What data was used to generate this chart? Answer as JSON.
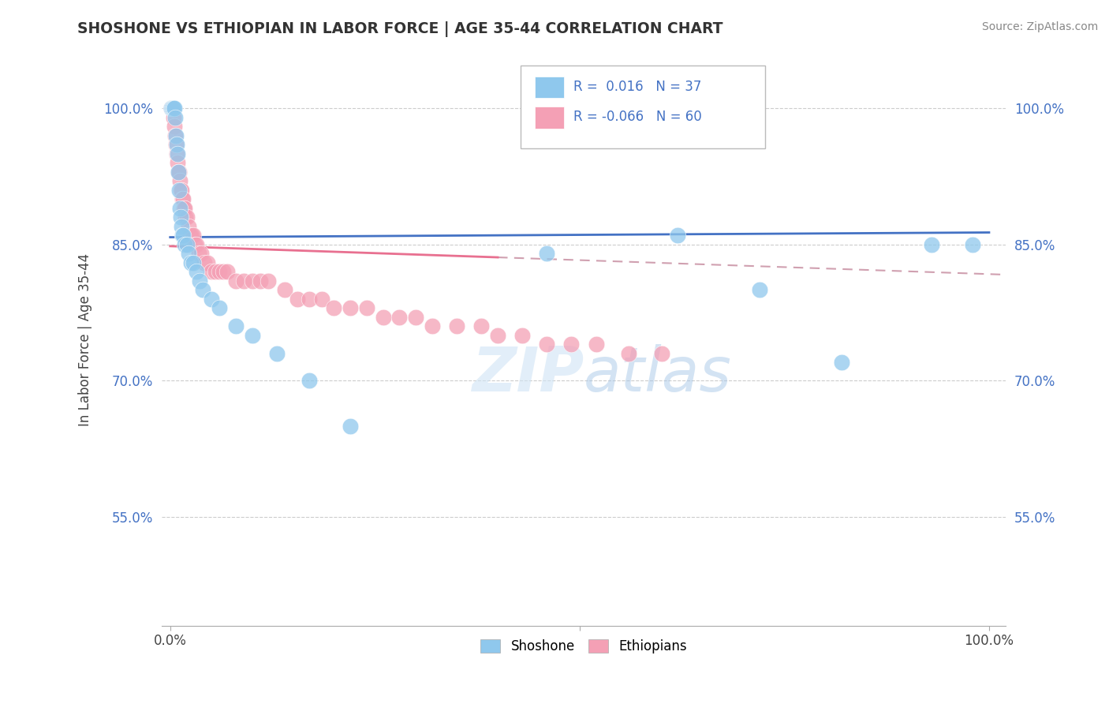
{
  "title": "SHOSHONE VS ETHIOPIAN IN LABOR FORCE | AGE 35-44 CORRELATION CHART",
  "source": "Source: ZipAtlas.com",
  "ylabel": "In Labor Force | Age 35-44",
  "y_ticks": [
    0.55,
    0.7,
    0.85,
    1.0
  ],
  "y_tick_labels": [
    "55.0%",
    "70.0%",
    "85.0%",
    "100.0%"
  ],
  "ylim": [
    0.43,
    1.06
  ],
  "xlim": [
    -0.01,
    1.02
  ],
  "shoshone_color": "#8FC8ED",
  "ethiopian_color": "#F4A0B5",
  "shoshone_R": 0.016,
  "shoshone_N": 37,
  "ethiopian_R": -0.066,
  "ethiopian_N": 60,
  "shoshone_line_color": "#4472C4",
  "ethiopian_line_color": "#E87090",
  "dash_color": "#D0A0B0",
  "watermark_zip": "ZIP",
  "watermark_atlas": "atlas",
  "legend_labels": [
    "Shoshone",
    "Ethiopians"
  ],
  "background_color": "#FFFFFF",
  "grid_color": "#CCCCCC",
  "shoshone_x": [
    0.001,
    0.002,
    0.003,
    0.004,
    0.005,
    0.006,
    0.007,
    0.008,
    0.009,
    0.01,
    0.011,
    0.012,
    0.013,
    0.014,
    0.015,
    0.016,
    0.018,
    0.02,
    0.022,
    0.025,
    0.028,
    0.032,
    0.036,
    0.04,
    0.05,
    0.06,
    0.08,
    0.1,
    0.13,
    0.17,
    0.22,
    0.46,
    0.62,
    0.72,
    0.82,
    0.93,
    0.98
  ],
  "shoshone_y": [
    1.0,
    1.0,
    1.0,
    1.0,
    1.0,
    0.99,
    0.97,
    0.96,
    0.95,
    0.93,
    0.91,
    0.89,
    0.88,
    0.87,
    0.86,
    0.86,
    0.85,
    0.85,
    0.84,
    0.83,
    0.83,
    0.82,
    0.81,
    0.8,
    0.79,
    0.78,
    0.76,
    0.75,
    0.73,
    0.7,
    0.65,
    0.84,
    0.86,
    0.8,
    0.72,
    0.85,
    0.85
  ],
  "ethiopian_x": [
    0.001,
    0.002,
    0.003,
    0.004,
    0.005,
    0.006,
    0.007,
    0.008,
    0.009,
    0.01,
    0.011,
    0.012,
    0.013,
    0.014,
    0.015,
    0.016,
    0.017,
    0.018,
    0.019,
    0.02,
    0.022,
    0.024,
    0.026,
    0.028,
    0.03,
    0.032,
    0.035,
    0.038,
    0.042,
    0.046,
    0.05,
    0.055,
    0.06,
    0.065,
    0.07,
    0.08,
    0.09,
    0.1,
    0.11,
    0.12,
    0.14,
    0.155,
    0.17,
    0.185,
    0.2,
    0.22,
    0.24,
    0.26,
    0.28,
    0.3,
    0.32,
    0.35,
    0.38,
    0.4,
    0.43,
    0.46,
    0.49,
    0.52,
    0.56,
    0.6
  ],
  "ethiopian_y": [
    1.0,
    1.0,
    1.0,
    0.99,
    0.98,
    0.97,
    0.96,
    0.95,
    0.94,
    0.93,
    0.93,
    0.92,
    0.91,
    0.91,
    0.9,
    0.9,
    0.89,
    0.89,
    0.88,
    0.88,
    0.87,
    0.86,
    0.86,
    0.86,
    0.85,
    0.85,
    0.84,
    0.84,
    0.83,
    0.83,
    0.82,
    0.82,
    0.82,
    0.82,
    0.82,
    0.81,
    0.81,
    0.81,
    0.81,
    0.81,
    0.8,
    0.79,
    0.79,
    0.79,
    0.78,
    0.78,
    0.78,
    0.77,
    0.77,
    0.77,
    0.76,
    0.76,
    0.76,
    0.75,
    0.75,
    0.74,
    0.74,
    0.74,
    0.73,
    0.73
  ]
}
